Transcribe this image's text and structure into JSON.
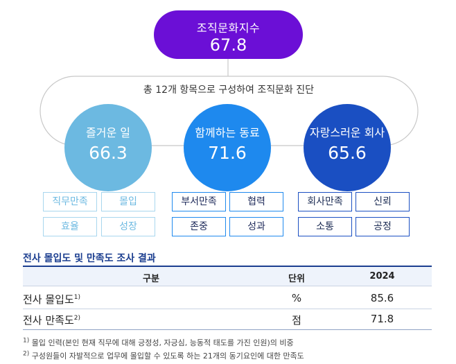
{
  "index": {
    "label": "조직문화지수",
    "value": "67.8"
  },
  "caption": "총 12개 항목으로 구성하여 조직문화 진단",
  "groups": [
    {
      "title": "즐거운 일",
      "value": "66.3",
      "items": [
        "직무만족",
        "몰입",
        "효율",
        "성장"
      ],
      "color": "#6cb9e1"
    },
    {
      "title": "함께하는 동료",
      "value": "71.6",
      "items": [
        "부서만족",
        "협력",
        "존중",
        "성과"
      ],
      "color": "#1e89ee"
    },
    {
      "title": "자랑스러운 회사",
      "value": "65.6",
      "items": [
        "회사만족",
        "신뢰",
        "소통",
        "공정"
      ],
      "color": "#1a4fc2"
    }
  ],
  "table": {
    "title": "전사 몰입도 및 만족도 조사 결과",
    "headers": [
      "구분",
      "단위",
      "2024"
    ],
    "rows": [
      {
        "label": "전사 몰입도",
        "sup": "1)",
        "unit": "%",
        "value": "85.6"
      },
      {
        "label": "전사 만족도",
        "sup": "2)",
        "unit": "점",
        "value": "71.8"
      }
    ]
  },
  "notes": [
    {
      "sup": "1)",
      "text": "몰입 인력(본인 현재 직무에 대해 긍정성, 자긍심, 능동적 태도를 가진 인원)의 비중"
    },
    {
      "sup": "2)",
      "text": "구성원들이 자발적으로 업무에 몰입할 수 있도록 하는 21개의 동기요인에 대한 만족도"
    }
  ],
  "colors": {
    "index_pill": "#6b0fd6",
    "table_accent": "#1a3d8f"
  }
}
